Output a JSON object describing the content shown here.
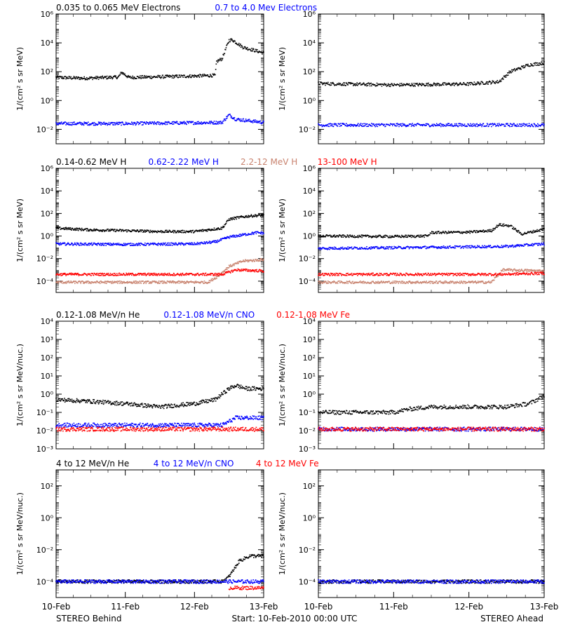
{
  "footer": {
    "left": "STEREO Behind",
    "center": "Start: 10-Feb-2010 00:00 UTC",
    "right": "STEREO Ahead"
  },
  "x_ticks": [
    "10-Feb",
    "11-Feb",
    "12-Feb",
    "13-Feb"
  ],
  "colors": {
    "black": "#000000",
    "blue": "#0000ff",
    "tan": "#c8826e",
    "red": "#ff0000"
  },
  "chart_data": [
    {
      "type": "scatter",
      "row": 0,
      "legend": [
        {
          "label": "0.035 to 0.065 MeV Electrons",
          "color": "#000000"
        },
        {
          "label": "0.7 to 4.0 Mev Electrons",
          "color": "#0000ff"
        }
      ],
      "ylabel": "1/(cm² s sr MeV)",
      "yscale": "log",
      "ylim": [
        0.001,
        1000000
      ],
      "yticks": [
        {
          "v": 0.01,
          "l": "10⁻²"
        },
        {
          "v": 1,
          "l": "10⁰"
        },
        {
          "v": 100,
          "l": "10²"
        },
        {
          "v": 10000,
          "l": "10⁴"
        },
        {
          "v": 1000000,
          "l": "10⁶"
        }
      ],
      "xlabel_days": [
        0,
        3
      ],
      "panels": [
        {
          "side": "Behind",
          "series": [
            {
              "color": "#000000",
              "type": "line",
              "points": [
                [
                  0,
                  40
                ],
                [
                  0.4,
                  35
                ],
                [
                  0.9,
                  42
                ],
                [
                  0.95,
                  90
                ],
                [
                  1.0,
                  60
                ],
                [
                  1.05,
                  40
                ],
                [
                  1.3,
                  42
                ],
                [
                  1.6,
                  45
                ],
                [
                  2.0,
                  50
                ],
                [
                  2.3,
                  55
                ],
                [
                  2.32,
                  500
                ],
                [
                  2.4,
                  800
                ],
                [
                  2.5,
                  15000
                ],
                [
                  2.55,
                  16000
                ],
                [
                  2.7,
                  5000
                ],
                [
                  3.0,
                  2000
                ]
              ]
            },
            {
              "color": "#0000ff",
              "type": "line",
              "points": [
                [
                  0,
                  0.025
                ],
                [
                  1.0,
                  0.025
                ],
                [
                  2.4,
                  0.03
                ],
                [
                  2.5,
                  0.1
                ],
                [
                  2.6,
                  0.05
                ],
                [
                  3.0,
                  0.03
                ]
              ]
            }
          ]
        },
        {
          "side": "Ahead",
          "series": [
            {
              "color": "#000000",
              "type": "line",
              "points": [
                [
                  0,
                  15
                ],
                [
                  1.0,
                  12
                ],
                [
                  2.0,
                  14
                ],
                [
                  2.4,
                  20
                ],
                [
                  2.55,
                  100
                ],
                [
                  2.8,
                  300
                ],
                [
                  3.0,
                  400
                ]
              ]
            },
            {
              "color": "#0000ff",
              "type": "line",
              "points": [
                [
                  0,
                  0.02
                ],
                [
                  1.5,
                  0.02
                ],
                [
                  3.0,
                  0.02
                ]
              ]
            }
          ]
        }
      ]
    },
    {
      "type": "scatter",
      "row": 1,
      "legend": [
        {
          "label": "0.14-0.62 MeV H",
          "color": "#000000"
        },
        {
          "label": "0.62-2.22 MeV H",
          "color": "#0000ff"
        },
        {
          "label": "2.2-12 MeV H",
          "color": "#c8826e"
        },
        {
          "label": "13-100 MeV H",
          "color": "#ff0000"
        }
      ],
      "ylabel": "1/(cm² s sr MeV)",
      "yscale": "log",
      "ylim": [
        1e-05,
        1000000
      ],
      "yticks": [
        {
          "v": 0.0001,
          "l": "10⁻⁴"
        },
        {
          "v": 0.01,
          "l": "10⁻²"
        },
        {
          "v": 1,
          "l": "10⁰"
        },
        {
          "v": 100,
          "l": "10²"
        },
        {
          "v": 10000,
          "l": "10⁴"
        },
        {
          "v": 1000000,
          "l": "10⁶"
        }
      ],
      "panels": [
        {
          "side": "Behind",
          "series": [
            {
              "color": "#000000",
              "type": "line",
              "points": [
                [
                  0,
                  5
                ],
                [
                  0.5,
                  3.5
                ],
                [
                  1.0,
                  3
                ],
                [
                  1.5,
                  2.5
                ],
                [
                  2.0,
                  2.5
                ],
                [
                  2.4,
                  5
                ],
                [
                  2.5,
                  30
                ],
                [
                  2.6,
                  40
                ],
                [
                  2.8,
                  60
                ],
                [
                  3.0,
                  70
                ]
              ]
            },
            {
              "color": "#0000ff",
              "type": "line",
              "points": [
                [
                  0,
                  0.2
                ],
                [
                  1.0,
                  0.18
                ],
                [
                  2.0,
                  0.2
                ],
                [
                  2.3,
                  0.3
                ],
                [
                  2.5,
                  0.8
                ],
                [
                  2.9,
                  2
                ],
                [
                  3.0,
                  1.8
                ]
              ]
            },
            {
              "color": "#c8826e",
              "type": "line",
              "points": [
                [
                  0,
                  8e-05
                ],
                [
                  2.2,
                  8e-05
                ],
                [
                  2.35,
                  0.0003
                ],
                [
                  2.5,
                  0.002
                ],
                [
                  2.7,
                  0.006
                ],
                [
                  3.0,
                  0.008
                ]
              ]
            },
            {
              "color": "#ff0000",
              "type": "line",
              "points": [
                [
                  0,
                  0.0004
                ],
                [
                  2.4,
                  0.0004
                ],
                [
                  2.6,
                  0.001
                ],
                [
                  3.0,
                  0.0008
                ]
              ]
            }
          ]
        },
        {
          "side": "Ahead",
          "series": [
            {
              "color": "#000000",
              "type": "line",
              "points": [
                [
                  0,
                  1
                ],
                [
                  1.0,
                  0.9
                ],
                [
                  1.45,
                  1.0
                ],
                [
                  1.5,
                  2
                ],
                [
                  2.0,
                  2.2
                ],
                [
                  2.3,
                  3
                ],
                [
                  2.4,
                  10
                ],
                [
                  2.55,
                  8
                ],
                [
                  2.7,
                  1.5
                ],
                [
                  3.0,
                  4
                ]
              ]
            },
            {
              "color": "#0000ff",
              "type": "line",
              "points": [
                [
                  0,
                  0.08
                ],
                [
                  1.5,
                  0.1
                ],
                [
                  2.5,
                  0.12
                ],
                [
                  3.0,
                  0.2
                ]
              ]
            },
            {
              "color": "#c8826e",
              "type": "line",
              "points": [
                [
                  0,
                  8e-05
                ],
                [
                  2.3,
                  8e-05
                ],
                [
                  2.45,
                  0.001
                ],
                [
                  3.0,
                  0.0008
                ]
              ]
            },
            {
              "color": "#ff0000",
              "type": "line",
              "points": [
                [
                  0,
                  0.0004
                ],
                [
                  2.4,
                  0.0004
                ],
                [
                  3.0,
                  0.0005
                ]
              ]
            }
          ]
        }
      ]
    },
    {
      "type": "scatter",
      "row": 2,
      "legend": [
        {
          "label": "0.12-1.08 MeV/n He",
          "color": "#000000"
        },
        {
          "label": "0.12-1.08 MeV/n CNO",
          "color": "#0000ff"
        },
        {
          "label": "0.12-1.08 MeV Fe",
          "color": "#ff0000"
        }
      ],
      "ylabel": "1/(cm² s sr MeV/nuc.)",
      "yscale": "log",
      "ylim": [
        0.001,
        10000
      ],
      "yticks": [
        {
          "v": 0.001,
          "l": "10⁻³"
        },
        {
          "v": 0.01,
          "l": "10⁻²"
        },
        {
          "v": 0.1,
          "l": "10⁻¹"
        },
        {
          "v": 1,
          "l": "10⁰"
        },
        {
          "v": 10,
          "l": "10¹"
        },
        {
          "v": 100,
          "l": "10²"
        },
        {
          "v": 1000,
          "l": "10³"
        },
        {
          "v": 10000,
          "l": "10⁴"
        }
      ],
      "panels": [
        {
          "side": "Behind",
          "series": [
            {
              "color": "#000000",
              "type": "line",
              "points": [
                [
                  0,
                  0.5
                ],
                [
                  0.5,
                  0.4
                ],
                [
                  1.0,
                  0.3
                ],
                [
                  1.5,
                  0.2
                ],
                [
                  2.0,
                  0.3
                ],
                [
                  2.3,
                  0.5
                ],
                [
                  2.5,
                  2
                ],
                [
                  2.6,
                  3
                ],
                [
                  2.75,
                  2
                ],
                [
                  3.0,
                  2
                ]
              ]
            },
            {
              "color": "#0000ff",
              "type": "line",
              "points": [
                [
                  0,
                  0.02
                ],
                [
                  2.4,
                  0.02
                ],
                [
                  2.6,
                  0.05
                ],
                [
                  3.0,
                  0.05
                ]
              ]
            },
            {
              "color": "#ff0000",
              "type": "line",
              "points": [
                [
                  0,
                  0.012
                ],
                [
                  3.0,
                  0.012
                ]
              ]
            }
          ]
        },
        {
          "side": "Ahead",
          "series": [
            {
              "color": "#000000",
              "type": "line",
              "points": [
                [
                  0,
                  0.1
                ],
                [
                  1.0,
                  0.1
                ],
                [
                  1.2,
                  0.15
                ],
                [
                  1.5,
                  0.2
                ],
                [
                  2.0,
                  0.2
                ],
                [
                  2.5,
                  0.2
                ],
                [
                  2.8,
                  0.3
                ],
                [
                  3.0,
                  0.8
                ]
              ]
            },
            {
              "color": "#0000ff",
              "type": "line",
              "points": [
                [
                  0,
                  0.012
                ],
                [
                  3.0,
                  0.012
                ]
              ]
            },
            {
              "color": "#ff0000",
              "type": "line",
              "points": [
                [
                  0,
                  0.012
                ],
                [
                  3.0,
                  0.012
                ]
              ]
            }
          ]
        }
      ]
    },
    {
      "type": "scatter",
      "row": 3,
      "legend": [
        {
          "label": "4 to 12 MeV/n He",
          "color": "#000000"
        },
        {
          "label": "4 to 12 MeV/n CNO",
          "color": "#0000ff"
        },
        {
          "label": "4 to 12 MeV Fe",
          "color": "#ff0000"
        }
      ],
      "ylabel": "1/(cm² s sr MeV/nuc.)",
      "yscale": "log",
      "ylim": [
        1e-05,
        1000
      ],
      "yticks": [
        {
          "v": 0.0001,
          "l": "10⁻⁴"
        },
        {
          "v": 0.01,
          "l": "10⁻²"
        },
        {
          "v": 1,
          "l": "10⁰"
        },
        {
          "v": 100,
          "l": "10²"
        }
      ],
      "panels": [
        {
          "side": "Behind",
          "series": [
            {
              "color": "#000000",
              "type": "line",
              "points": [
                [
                  0,
                  0.0001
                ],
                [
                  2.4,
                  0.0001
                ],
                [
                  2.5,
                  0.0002
                ],
                [
                  2.65,
                  0.002
                ],
                [
                  2.8,
                  0.004
                ],
                [
                  3.0,
                  0.004
                ]
              ]
            },
            {
              "color": "#0000ff",
              "type": "line",
              "points": [
                [
                  0,
                  0.0001
                ],
                [
                  3.0,
                  0.0001
                ]
              ]
            },
            {
              "color": "#ff0000",
              "type": "line",
              "points": [
                [
                  2.5,
                  4e-05
                ],
                [
                  3.0,
                  4e-05
                ]
              ]
            }
          ]
        },
        {
          "side": "Ahead",
          "series": [
            {
              "color": "#000000",
              "type": "line",
              "points": [
                [
                  0,
                  0.0001
                ],
                [
                  3.0,
                  0.0001
                ]
              ]
            },
            {
              "color": "#0000ff",
              "type": "line",
              "points": [
                [
                  0,
                  0.0001
                ],
                [
                  3.0,
                  0.0001
                ]
              ]
            }
          ]
        }
      ]
    }
  ]
}
